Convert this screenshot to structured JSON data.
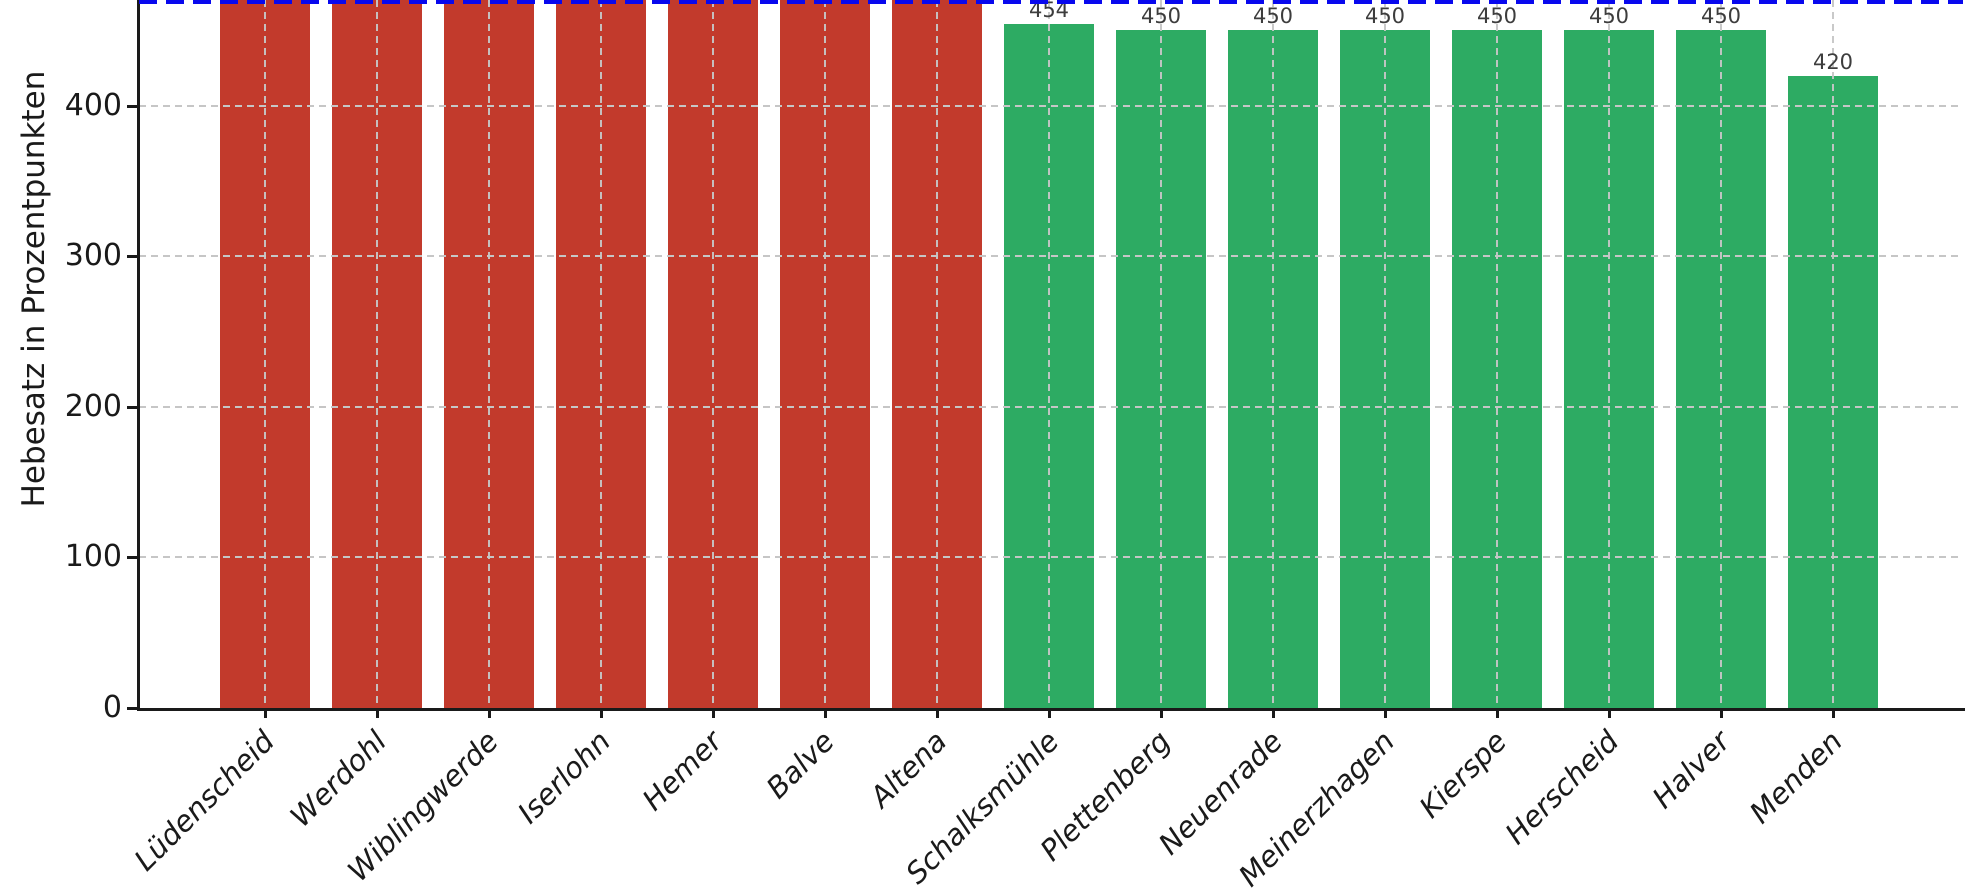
{
  "chart_data": {
    "type": "bar",
    "title": "",
    "xlabel": "",
    "ylabel": "Hebesatz in Prozentpunkten",
    "categories": [
      "Lüdenscheid",
      "Werdohl",
      "Wiblingwerde",
      "Iserlohn",
      "Hemer",
      "Balve",
      "Altena",
      "Schalksmühle",
      "Plettenberg",
      "Neuenrade",
      "Meinerzhagen",
      "Kierspe",
      "Herscheid",
      "Halver",
      "Menden"
    ],
    "values": [
      null,
      null,
      null,
      null,
      null,
      null,
      null,
      454,
      450,
      450,
      450,
      450,
      450,
      450,
      420
    ],
    "bar_labels": [
      "",
      "",
      "",
      "",
      "",
      "",
      "",
      "454",
      "450",
      "450",
      "450",
      "450",
      "450",
      "450",
      "420"
    ],
    "bar_colors": [
      "#c23a2c",
      "#c23a2c",
      "#c23a2c",
      "#c23a2c",
      "#c23a2c",
      "#c23a2c",
      "#c23a2c",
      "#2dab63",
      "#2dab63",
      "#2dab63",
      "#2dab63",
      "#2dab63",
      "#2dab63",
      "#2dab63",
      "#2dab63"
    ],
    "bars_truncated_at_top": [
      true,
      true,
      true,
      true,
      true,
      true,
      true,
      false,
      false,
      false,
      false,
      false,
      false,
      false,
      false
    ],
    "yticks": [
      0,
      100,
      200,
      300,
      400
    ],
    "ytick_labels": [
      "0",
      "100",
      "200",
      "300",
      "400"
    ],
    "visible_ylim": [
      0,
      470
    ],
    "reference_line": {
      "value": 470,
      "color": "#0808ee",
      "style": "dashed"
    },
    "grid": true,
    "legend": null
  },
  "colors": {
    "bar_red": "#c23a2c",
    "bar_green": "#2dab63",
    "reference_line": "#0808ee",
    "grid": "#c6c6c6",
    "axis": "#1a1a1a",
    "tick_text": "#1a1a1a",
    "value_label_text": "#3d3d3d",
    "background": "#ffffff"
  }
}
